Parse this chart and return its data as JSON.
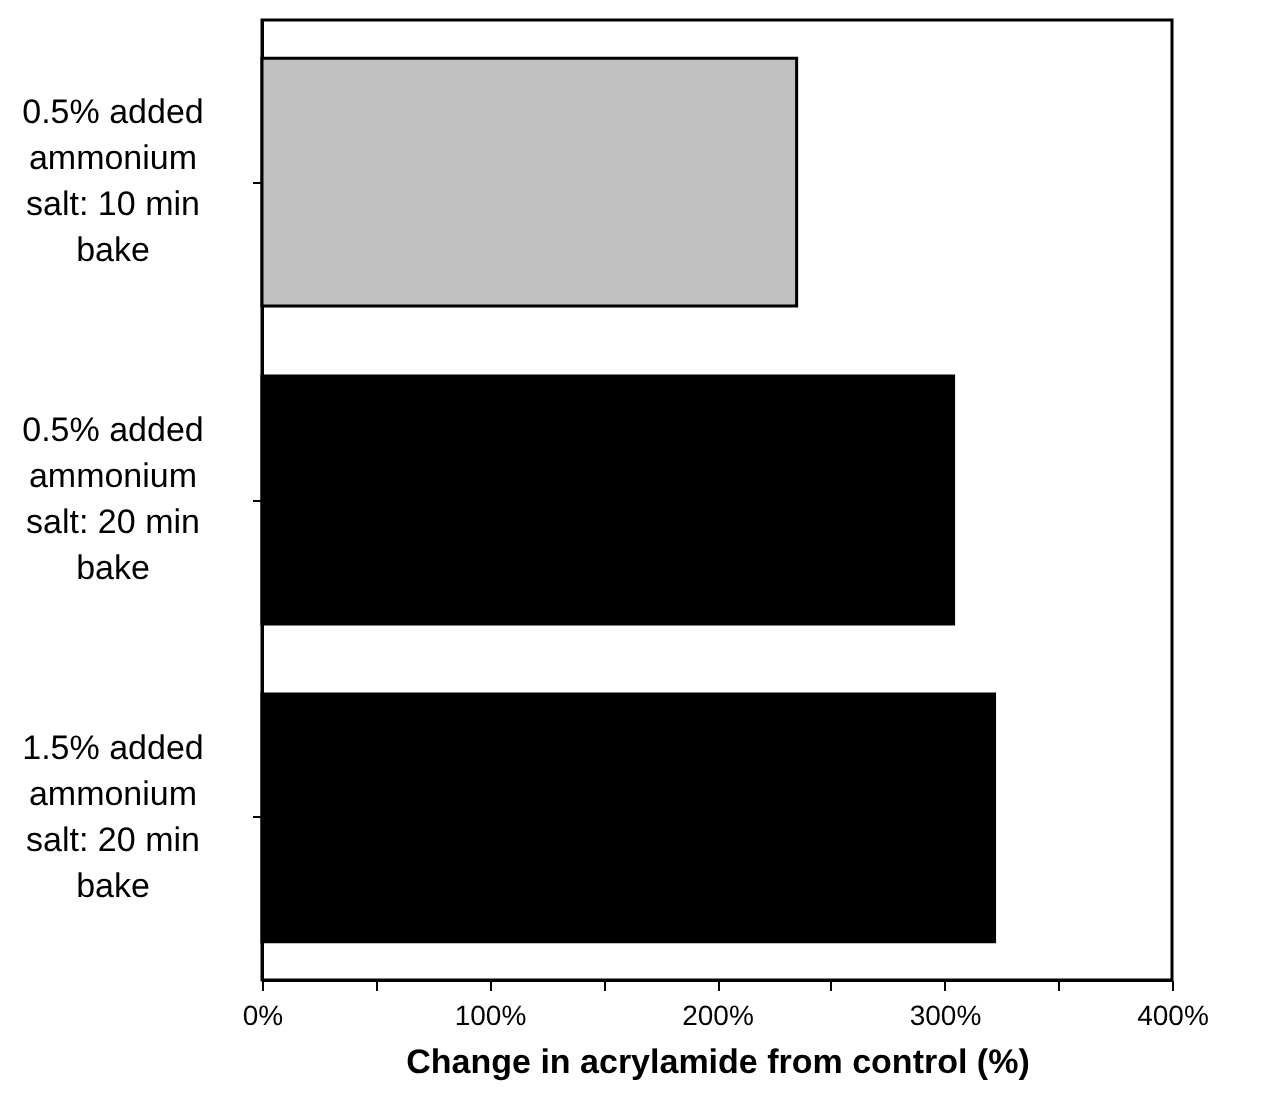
{
  "chart_data": {
    "type": "bar",
    "orientation": "horizontal",
    "xlabel": "Change in acrylamide from control (%)",
    "categories": [
      "0.5% added ammonium salt: 10 min bake",
      "0.5% added ammonium salt: 20 min bake",
      "1.5% added ammonium salt:  20 min bake"
    ],
    "values": [
      235,
      304,
      322
    ],
    "colors": [
      "#c0c0c0",
      "#000000",
      "#000000"
    ],
    "xlim": [
      0,
      400
    ],
    "xticks": [
      {
        "value": 0,
        "label": "0%"
      },
      {
        "value": 50,
        "label": null
      },
      {
        "value": 100,
        "label": "100%"
      },
      {
        "value": 150,
        "label": null
      },
      {
        "value": 200,
        "label": "200%"
      },
      {
        "value": 250,
        "label": null
      },
      {
        "value": 300,
        "label": "300%"
      },
      {
        "value": 350,
        "label": null
      },
      {
        "value": 400,
        "label": "400%"
      }
    ],
    "grid": false
  }
}
